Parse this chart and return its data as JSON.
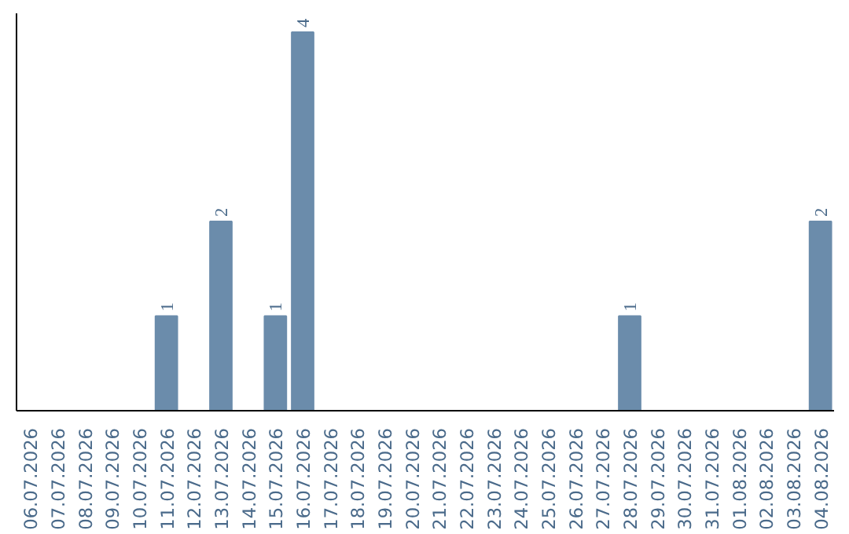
{
  "chart_data": {
    "type": "bar",
    "categories": [
      "06.07.2026",
      "07.07.2026",
      "08.07.2026",
      "09.07.2026",
      "10.07.2026",
      "11.07.2026",
      "12.07.2026",
      "13.07.2026",
      "14.07.2026",
      "15.07.2026",
      "16.07.2026",
      "17.07.2026",
      "18.07.2026",
      "19.07.2026",
      "20.07.2026",
      "21.07.2026",
      "22.07.2026",
      "23.07.2026",
      "24.07.2026",
      "25.07.2026",
      "26.07.2026",
      "27.07.2026",
      "28.07.2026",
      "29.07.2026",
      "30.07.2026",
      "31.07.2026",
      "01.08.2026",
      "02.08.2026",
      "03.08.2026",
      "04.08.2026"
    ],
    "values": [
      0,
      0,
      0,
      0,
      0,
      1,
      0,
      2,
      0,
      1,
      4,
      0,
      0,
      0,
      0,
      0,
      0,
      0,
      0,
      0,
      0,
      0,
      1,
      0,
      0,
      0,
      0,
      0,
      0,
      2
    ],
    "value_labels": [
      null,
      null,
      null,
      null,
      null,
      "1",
      null,
      "2",
      null,
      "1",
      "4",
      null,
      null,
      null,
      null,
      null,
      null,
      null,
      null,
      null,
      null,
      null,
      "1",
      null,
      null,
      null,
      null,
      null,
      null,
      "2"
    ],
    "color": "#6b8cab",
    "ylim": [
      0,
      4.2
    ],
    "tick_labels": "x",
    "grid": false
  }
}
